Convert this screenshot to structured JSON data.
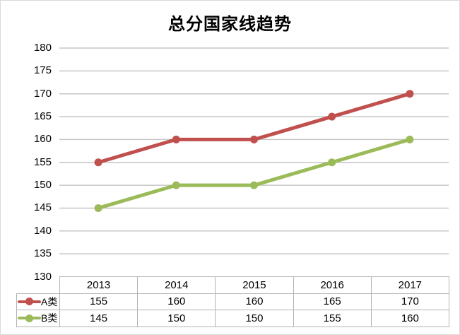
{
  "title": "总分国家线趋势",
  "chart_data": {
    "type": "line",
    "title": "总分国家线趋势",
    "categories": [
      "2013",
      "2014",
      "2015",
      "2016",
      "2017"
    ],
    "series": [
      {
        "name": "A类",
        "values": [
          155,
          160,
          160,
          165,
          170
        ],
        "color": "#C0504D"
      },
      {
        "name": "B类",
        "values": [
          145,
          150,
          150,
          155,
          160
        ],
        "color": "#9BBB59"
      }
    ],
    "ylim": [
      130,
      180
    ],
    "ytick_step": 5,
    "yticks": [
      180,
      175,
      170,
      165,
      160,
      155,
      150,
      145,
      140,
      135,
      130
    ],
    "grid": true,
    "legend_position": "data-table",
    "data_table": true,
    "xlabel": "",
    "ylabel": ""
  },
  "colors": {
    "series_a": "#C0504D",
    "series_b": "#9BBB59",
    "gridline": "#c6c6c6",
    "table_border": "#b3b3b3",
    "chart_border": "#d9d9d9",
    "text": "#000000",
    "background": "#ffffff"
  }
}
